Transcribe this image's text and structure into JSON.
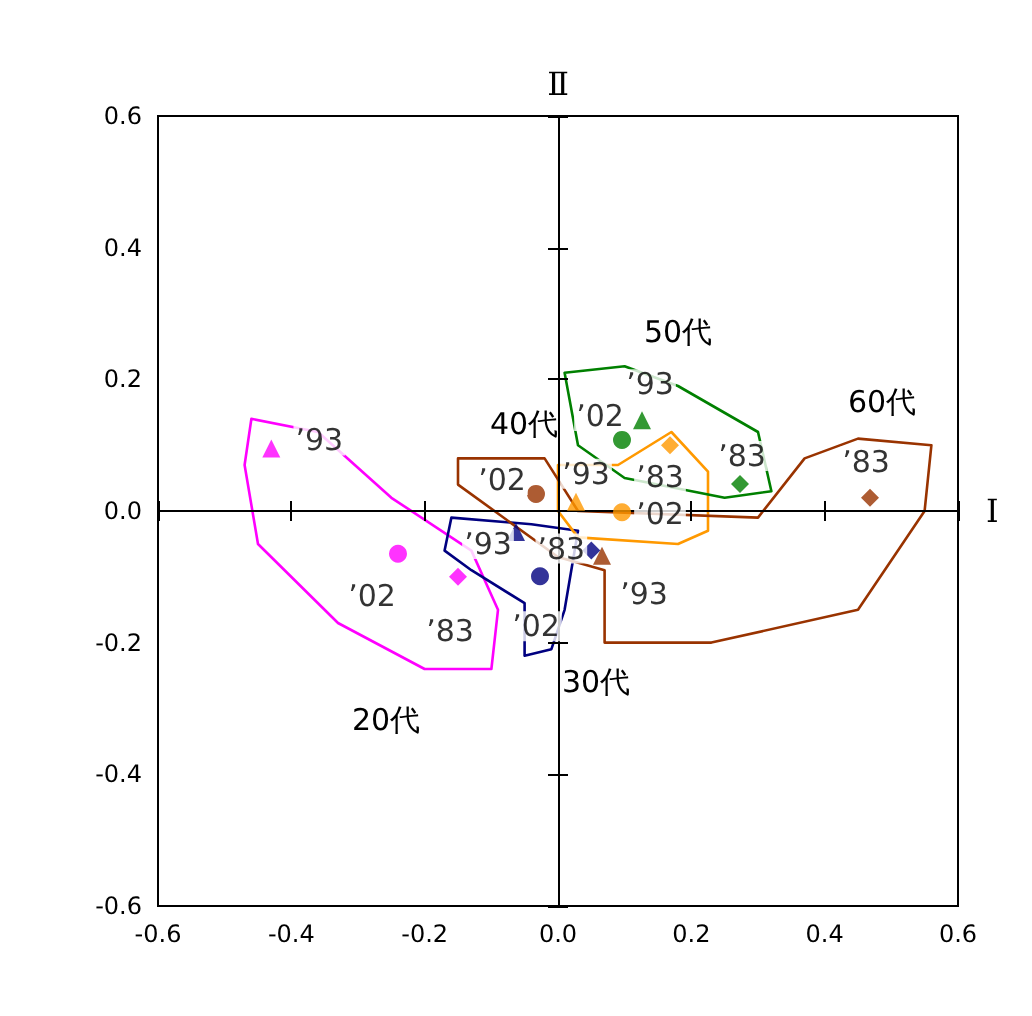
{
  "chart_data": {
    "type": "scatter",
    "xlabel": "Ⅰ",
    "ylabel": "Ⅱ",
    "xlim": [
      -0.6,
      0.6
    ],
    "ylim": [
      -0.6,
      0.6
    ],
    "xticks": [
      -0.6,
      -0.4,
      -0.2,
      {
        "value": 0,
        "label": "0.0"
      },
      0.2,
      0.4,
      0.6
    ],
    "yticks": [
      -0.6,
      -0.4,
      -0.2,
      {
        "value": 0,
        "label": "0.0"
      },
      0.2,
      0.4,
      0.6
    ],
    "series": [
      {
        "name": "’93",
        "color": "#ff00ff",
        "marker": "triangle",
        "x": [
          -0.43
        ],
        "values": [
          0.095
        ]
      },
      {
        "name": "’02",
        "color": "#ff00ff",
        "marker": "circle",
        "x": [
          -0.24
        ],
        "values": [
          -0.065
        ]
      },
      {
        "name": "’83",
        "color": "#ff00ff",
        "marker": "diamond",
        "x": [
          -0.15
        ],
        "values": [
          -0.1
        ]
      },
      {
        "name": "’93",
        "color": "#000080",
        "marker": "triangle",
        "x": [
          -0.063
        ],
        "values": [
          -0.032
        ]
      },
      {
        "name": "’02",
        "color": "#000080",
        "marker": "circle",
        "x": [
          -0.027
        ],
        "values": [
          -0.099
        ]
      },
      {
        "name": "’83",
        "color": "#000080",
        "marker": "diamond",
        "x": [
          0.05
        ],
        "values": [
          -0.06
        ]
      },
      {
        "name": "’93",
        "color": "#ff9900",
        "marker": "triangle",
        "x": [
          0.027
        ],
        "values": [
          0.014
        ]
      },
      {
        "name": "’02",
        "color": "#ff9900",
        "marker": "circle",
        "x": [
          0.096
        ],
        "values": [
          -0.002
        ]
      },
      {
        "name": "’83",
        "color": "#ff9900",
        "marker": "diamond",
        "x": [
          0.168
        ],
        "values": [
          0.1
        ]
      },
      {
        "name": "’93",
        "color": "#008000",
        "marker": "triangle",
        "x": [
          0.126
        ],
        "values": [
          0.138
        ]
      },
      {
        "name": "’02",
        "color": "#008000",
        "marker": "circle",
        "x": [
          0.096
        ],
        "values": [
          0.108
        ]
      },
      {
        "name": "’83",
        "color": "#008000",
        "marker": "diamond",
        "x": [
          0.273
        ],
        "values": [
          0.041
        ]
      },
      {
        "name": "’93",
        "color": "#993300",
        "marker": "triangle",
        "x": [
          0.066
        ],
        "values": [
          -0.068
        ]
      },
      {
        "name": "’02",
        "color": "#993300",
        "marker": "circle",
        "x": [
          -0.033
        ],
        "values": [
          0.026
        ]
      },
      {
        "name": "’83",
        "color": "#993300",
        "marker": "diamond",
        "x": [
          0.468
        ],
        "values": [
          0.02
        ]
      }
    ],
    "annotations": [
      "20代",
      "30代",
      "40代",
      "50代",
      "60代"
    ]
  }
}
